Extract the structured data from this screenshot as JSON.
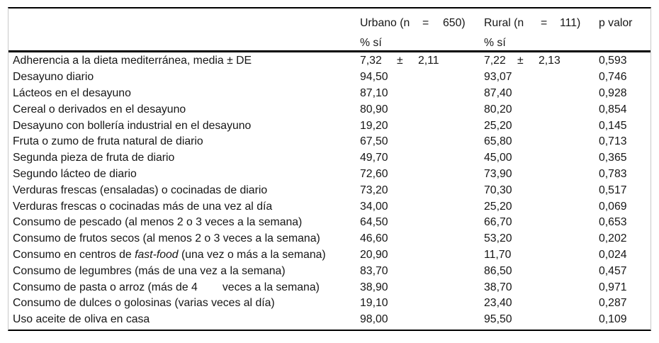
{
  "meta": {
    "background_color": "#ffffff",
    "text_color": "#161616",
    "rule_color": "#000000",
    "side_border_color": "#c9c9c9"
  },
  "table": {
    "header": {
      "label_col": "",
      "urbano": {
        "label": "Urbano (n",
        "eq": "=",
        "n": "650)",
        "sub": "% sí"
      },
      "rural": {
        "label": "Rural (n",
        "eq": "=",
        "n": "111)",
        "sub": "% sí"
      },
      "p": "p valor"
    },
    "rows": [
      {
        "label": [
          "Adherencia a la dieta mediterránea, media ± DE"
        ],
        "urbano": {
          "mean": "7,32",
          "pm": "±",
          "sd": "2,11"
        },
        "rural": {
          "mean": "7,22",
          "pm": "±",
          "sd": "2,13"
        },
        "p": "0,593"
      },
      {
        "label": [
          "Desayuno diario"
        ],
        "urbano": "94,50",
        "rural": "93,07",
        "p": "0,746"
      },
      {
        "label": [
          "Lácteos en el desayuno"
        ],
        "urbano": "87,10",
        "rural": "87,40",
        "p": "0,928"
      },
      {
        "label": [
          "Cereal o derivados en el desayuno"
        ],
        "urbano": "80,90",
        "rural": "80,20",
        "p": "0,854"
      },
      {
        "label": [
          "Desayuno con bollería industrial en el desayuno"
        ],
        "urbano": "19,20",
        "rural": "25,20",
        "p": "0,145"
      },
      {
        "label": [
          "Fruta o zumo de fruta natural de diario"
        ],
        "urbano": "67,50",
        "rural": "65,80",
        "p": "0,713"
      },
      {
        "label": [
          "Segunda pieza de fruta de diario"
        ],
        "urbano": "49,70",
        "rural": "45,00",
        "p": "0,365"
      },
      {
        "label": [
          "Segundo lácteo de diario"
        ],
        "urbano": "72,60",
        "rural": "73,90",
        "p": "0,783"
      },
      {
        "label": [
          "Verduras frescas (ensaladas) o cocinadas de diario"
        ],
        "urbano": "73,20",
        "rural": "70,30",
        "p": "0,517"
      },
      {
        "label": [
          "Verduras frescas o cocinadas más de una vez al día"
        ],
        "urbano": "34,00",
        "rural": "25,20",
        "p": "0,069"
      },
      {
        "label": [
          "Consumo de pescado (al menos 2 o 3 veces a la semana)"
        ],
        "urbano": "64,50",
        "rural": "66,70",
        "p": "0,653"
      },
      {
        "label": [
          "Consumo de frutos secos (al menos 2 o 3 veces a la semana)"
        ],
        "urbano": "46,60",
        "rural": "53,20",
        "p": "0,202"
      },
      {
        "label": [
          "Consumo en centros de ",
          {
            "italic": "fast-food"
          },
          " (una vez o más a la semana)"
        ],
        "urbano": "20,90",
        "rural": "11,70",
        "p": "0,024"
      },
      {
        "label": [
          "Consumo de legumbres (más de una vez a la semana)"
        ],
        "urbano": "83,70",
        "rural": "86,50",
        "p": "0,457"
      },
      {
        "label": [
          "Consumo de pasta o arroz (más de 4        veces a la semana)"
        ],
        "urbano": "38,90",
        "rural": "38,70",
        "p": "0,971"
      },
      {
        "label": [
          "Consumo de dulces o golosinas (varias veces al día)"
        ],
        "urbano": "19,10",
        "rural": "23,40",
        "p": "0,287"
      },
      {
        "label": [
          "Uso aceite de oliva en casa"
        ],
        "urbano": "98,00",
        "rural": "95,50",
        "p": "0,109"
      }
    ]
  }
}
